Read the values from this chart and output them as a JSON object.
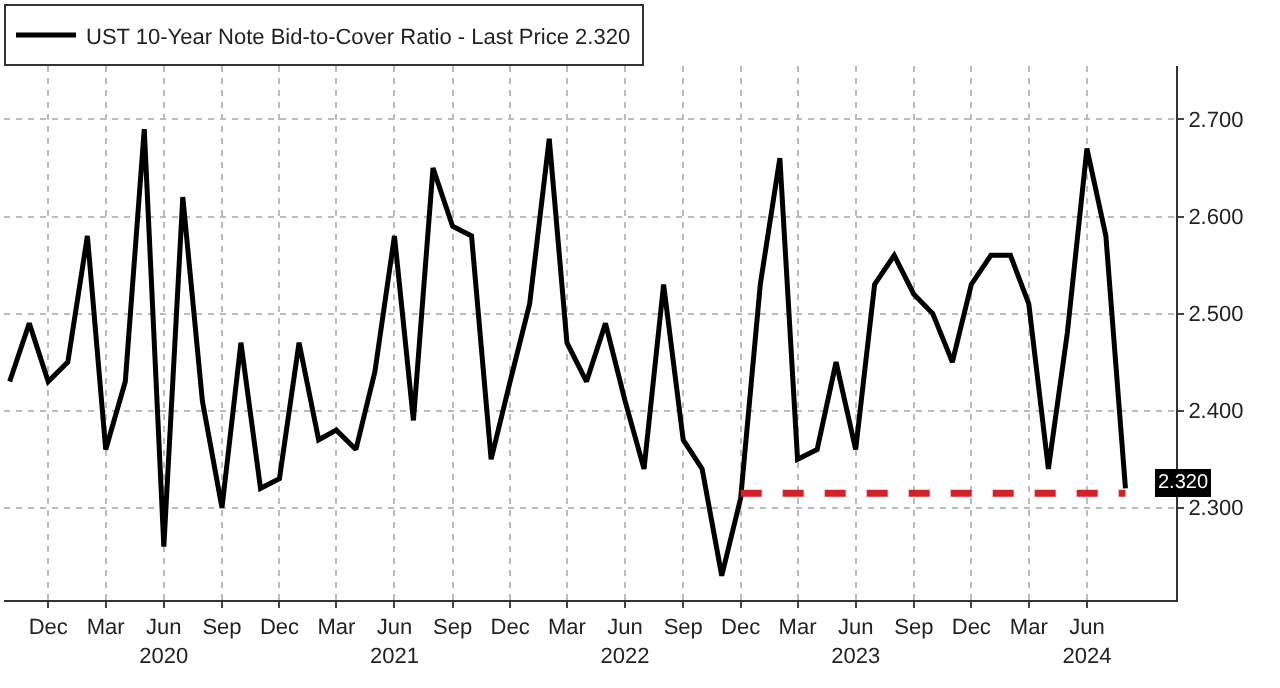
{
  "chart_data": {
    "type": "line",
    "x": [
      "2019-10",
      "2019-11",
      "2019-12",
      "2020-01",
      "2020-02",
      "2020-03",
      "2020-04",
      "2020-05",
      "2020-06",
      "2020-07",
      "2020-08",
      "2020-09",
      "2020-10",
      "2020-11",
      "2020-12",
      "2021-01",
      "2021-02",
      "2021-03",
      "2021-04",
      "2021-05",
      "2021-06",
      "2021-07",
      "2021-08",
      "2021-09",
      "2021-10",
      "2021-11",
      "2021-12",
      "2022-01",
      "2022-02",
      "2022-03",
      "2022-04",
      "2022-05",
      "2022-06",
      "2022-07",
      "2022-08",
      "2022-09",
      "2022-10",
      "2022-11",
      "2022-12",
      "2023-01",
      "2023-02",
      "2023-03",
      "2023-04",
      "2023-05",
      "2023-06",
      "2023-07",
      "2023-08",
      "2023-09",
      "2023-10",
      "2023-11",
      "2023-12",
      "2024-01",
      "2024-02",
      "2024-03",
      "2024-04",
      "2024-05",
      "2024-06",
      "2024-07",
      "2024-08"
    ],
    "series": [
      {
        "name": "UST 10-Year Note Bid-to-Cover Ratio - Last Price 2.320",
        "color": "#000000",
        "values": [
          2.43,
          2.49,
          2.43,
          2.45,
          2.58,
          2.36,
          2.43,
          2.69,
          2.26,
          2.62,
          2.41,
          2.3,
          2.47,
          2.32,
          2.33,
          2.47,
          2.37,
          2.38,
          2.36,
          2.44,
          2.58,
          2.39,
          2.65,
          2.59,
          2.58,
          2.35,
          2.43,
          2.51,
          2.68,
          2.47,
          2.43,
          2.49,
          2.41,
          2.34,
          2.53,
          2.37,
          2.34,
          2.23,
          2.31,
          2.53,
          2.66,
          2.35,
          2.36,
          2.45,
          2.36,
          2.53,
          2.56,
          2.52,
          2.5,
          2.45,
          2.53,
          2.56,
          2.56,
          2.51,
          2.34,
          2.48,
          2.67,
          2.58,
          2.32
        ]
      },
      {
        "color": "#d62027",
        "line_style": "dashed",
        "x": [
          "2022-12",
          "2024-08"
        ],
        "values": [
          2.315,
          2.315
        ]
      }
    ],
    "annotations": [
      {
        "text": "2.320",
        "x": "2024-08",
        "y": 2.32
      }
    ],
    "xlim": [
      "2019-09-22",
      "2024-10-20"
    ],
    "xticks": [
      {
        "value": "2019-12",
        "label": "Dec"
      },
      {
        "value": "2020-03",
        "label": "Mar"
      },
      {
        "value": "2020-06",
        "label": "Jun\n2020"
      },
      {
        "value": "2020-09",
        "label": "Sep"
      },
      {
        "value": "2020-12",
        "label": "Dec"
      },
      {
        "value": "2021-03",
        "label": "Mar"
      },
      {
        "value": "2021-06",
        "label": "Jun\n2021"
      },
      {
        "value": "2021-09",
        "label": "Sep"
      },
      {
        "value": "2021-12",
        "label": "Dec"
      },
      {
        "value": "2022-03",
        "label": "Mar"
      },
      {
        "value": "2022-06",
        "label": "Jun\n2022"
      },
      {
        "value": "2022-09",
        "label": "Sep"
      },
      {
        "value": "2022-12",
        "label": "Dec"
      },
      {
        "value": "2023-03",
        "label": "Mar"
      },
      {
        "value": "2023-06",
        "label": "Jun\n2023"
      },
      {
        "value": "2023-09",
        "label": "Sep"
      },
      {
        "value": "2023-12",
        "label": "Dec"
      },
      {
        "value": "2024-03",
        "label": "Mar"
      },
      {
        "value": "2024-06",
        "label": "Jun\n2024"
      }
    ],
    "ylim": [
      2.205,
      2.755
    ],
    "yticks": [
      {
        "value": 2.3,
        "label": "2.300"
      },
      {
        "value": 2.4,
        "label": "2.400"
      },
      {
        "value": 2.5,
        "label": "2.500"
      },
      {
        "value": 2.6,
        "label": "2.600"
      },
      {
        "value": 2.7,
        "label": "2.700"
      }
    ],
    "grid": true,
    "legend": "top left",
    "line_style": "solid"
  }
}
